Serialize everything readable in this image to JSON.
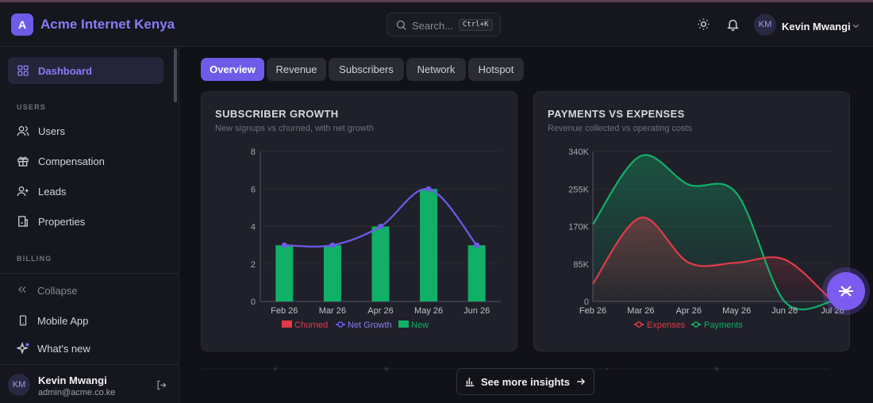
{
  "header": {
    "logo_letter": "A",
    "brand": "Acme Internet Kenya",
    "search_placeholder": "Search...",
    "search_shortcut": "Ctrl+K",
    "user_initials": "KM",
    "user_name": "Kevin Mwangi"
  },
  "sidebar": {
    "dashboard": "Dashboard",
    "section_users": "USERS",
    "items_users": [
      "Users",
      "Compensation",
      "Leads",
      "Properties"
    ],
    "section_billing": "BILLING",
    "collapse": "Collapse",
    "mobile_app": "Mobile App",
    "whats_new": "What's new",
    "user_initials": "KM",
    "user_name": "Kevin Mwangi",
    "user_email": "admin@acme.co.ke"
  },
  "tabs": [
    "Overview",
    "Revenue",
    "Subscribers",
    "Network",
    "Hotspot"
  ],
  "active_tab": "Overview",
  "colors": {
    "accent": "#6d5ce8",
    "green": "#10b068",
    "red": "#e23a4a",
    "purple_line": "#6d5ce8"
  },
  "subscriber_card": {
    "title": "SUBSCRIBER GROWTH",
    "subtitle": "New signups vs churned, with net growth"
  },
  "payments_card": {
    "title": "PAYMENTS VS EXPENSES",
    "subtitle": "Revenue collected vs operating costs"
  },
  "see_more": "See more insights",
  "chart_data": [
    {
      "type": "bar",
      "categories": [
        "Feb 26",
        "Mar 26",
        "Apr 26",
        "May 26",
        "Jun 26"
      ],
      "series": [
        {
          "name": "Churned",
          "type": "bar",
          "values": [
            0,
            0,
            0,
            0,
            0
          ]
        },
        {
          "name": "Net Growth",
          "type": "line",
          "values": [
            3,
            3,
            4,
            6,
            3
          ]
        },
        {
          "name": "New",
          "type": "bar",
          "values": [
            3,
            3,
            4,
            6,
            3
          ]
        }
      ],
      "ylim": [
        0,
        8
      ],
      "yticks": [
        "0",
        "2",
        "4",
        "6",
        "8"
      ],
      "legend": "bottom",
      "grid": true
    },
    {
      "type": "area",
      "categories": [
        "Feb 26",
        "Mar 26",
        "Apr 26",
        "May 26",
        "Jun 26",
        "Jul 26"
      ],
      "series": [
        {
          "name": "Expenses",
          "values": [
            40000,
            190000,
            88000,
            88000,
            95000,
            0
          ]
        },
        {
          "name": "Payments",
          "values": [
            175000,
            330000,
            265000,
            245000,
            0,
            0
          ]
        }
      ],
      "ylim": [
        0,
        340000
      ],
      "yticks": [
        "0",
        "85K",
        "170K",
        "255K",
        "340K"
      ],
      "legend": "bottom",
      "grid": true
    }
  ]
}
